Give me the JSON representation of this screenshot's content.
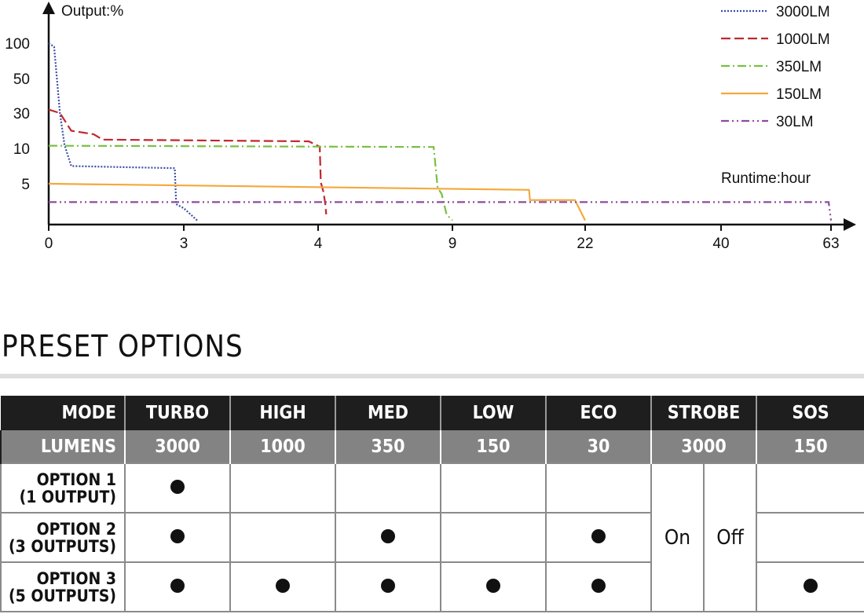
{
  "chart_data": {
    "type": "line",
    "ylabel": "Output:%",
    "xlabel": "Runtime:hour",
    "y_ticks": [
      "100",
      "50",
      "30",
      "10",
      "5"
    ],
    "x_ticks": [
      "0",
      "3",
      "4",
      "9",
      "22",
      "40",
      "63"
    ],
    "grid": false,
    "legend_position": "top-right",
    "series": [
      {
        "name": "3000LM",
        "color": "#3a4fa3",
        "style": "dotted",
        "points": [
          [
            0,
            100
          ],
          [
            0.12,
            95
          ],
          [
            0.25,
            30
          ],
          [
            0.35,
            12
          ],
          [
            0.5,
            7.5
          ],
          [
            2.8,
            7.2
          ],
          [
            2.83,
            4
          ],
          [
            3,
            3.8
          ],
          [
            3.05,
            3.5
          ],
          [
            3.1,
            3.2
          ]
        ]
      },
      {
        "name": "1000LM",
        "color": "#c0272d",
        "style": "dashed",
        "points": [
          [
            0,
            32
          ],
          [
            0.25,
            30
          ],
          [
            0.5,
            20
          ],
          [
            1,
            18
          ],
          [
            1.2,
            15
          ],
          [
            2,
            14.8
          ],
          [
            3.93,
            14
          ],
          [
            4.06,
            11
          ],
          [
            4.1,
            5.2
          ],
          [
            4.2,
            4.6
          ],
          [
            4.27,
            4
          ],
          [
            4.3,
            3.5
          ]
        ]
      },
      {
        "name": "350LM",
        "color": "#78c043",
        "style": "dash-dot",
        "points": [
          [
            0,
            11.5
          ],
          [
            8.3,
            10.8
          ],
          [
            8.45,
            4.8
          ],
          [
            8.6,
            4.5
          ],
          [
            8.78,
            3.5
          ],
          [
            9,
            3.2
          ]
        ]
      },
      {
        "name": "150LM",
        "color": "#f5a83a",
        "style": "solid",
        "points": [
          [
            0,
            5
          ],
          [
            16.5,
            4.7
          ],
          [
            16.6,
            4.2
          ],
          [
            21,
            4.2
          ],
          [
            22,
            3.2
          ]
        ]
      },
      {
        "name": "30LM",
        "color": "#8e4ba0",
        "style": "dash-dot-dot",
        "points": [
          [
            0,
            4.1
          ],
          [
            62.5,
            4.1
          ],
          [
            63,
            3.2
          ]
        ]
      }
    ]
  },
  "preset": {
    "title": "PRESET OPTIONS",
    "mode_label": "MODE",
    "lumens_label": "LUMENS",
    "modes": [
      "TURBO",
      "HIGH",
      "MED",
      "LOW",
      "ECO",
      "STROBE",
      "SOS"
    ],
    "lumens": [
      "3000",
      "1000",
      "350",
      "150",
      "30",
      "3000",
      "150"
    ],
    "strobe_on": "On",
    "strobe_off": "Off",
    "options": [
      {
        "label_1": "OPTION 1",
        "label_2": "(1 OUTPUT)",
        "turbo": true,
        "high": false,
        "med": false,
        "low": false,
        "eco": false,
        "sos": false
      },
      {
        "label_1": "OPTION 2",
        "label_2": "(3 OUTPUTS)",
        "turbo": true,
        "high": false,
        "med": true,
        "low": false,
        "eco": true,
        "sos": false
      },
      {
        "label_1": "OPTION 3",
        "label_2": "(5 OUTPUTS)",
        "turbo": true,
        "high": true,
        "med": true,
        "low": true,
        "eco": true,
        "sos": true
      }
    ]
  }
}
